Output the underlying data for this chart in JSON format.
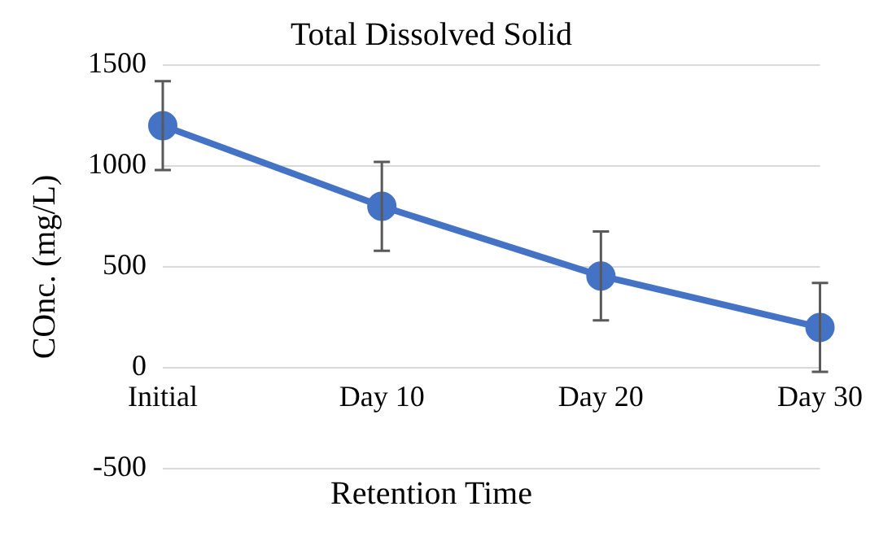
{
  "chart_data": {
    "type": "line",
    "title": "Total Dissolved Solid",
    "xlabel": "Retention Time",
    "ylabel": "COnc. (mg/L)",
    "categories": [
      "Initial",
      "Day 10",
      "Day 20",
      "Day 30"
    ],
    "series": [
      {
        "color": "#4472c4",
        "values": [
          1200,
          800,
          455,
          200
        ],
        "errors": [
          220,
          220,
          220,
          220
        ]
      }
    ],
    "ylim": [
      -500,
      1500
    ],
    "yticks": [
      -500,
      0,
      500,
      1000,
      1500
    ],
    "grid": "y",
    "marker": "circle",
    "legend": false
  }
}
